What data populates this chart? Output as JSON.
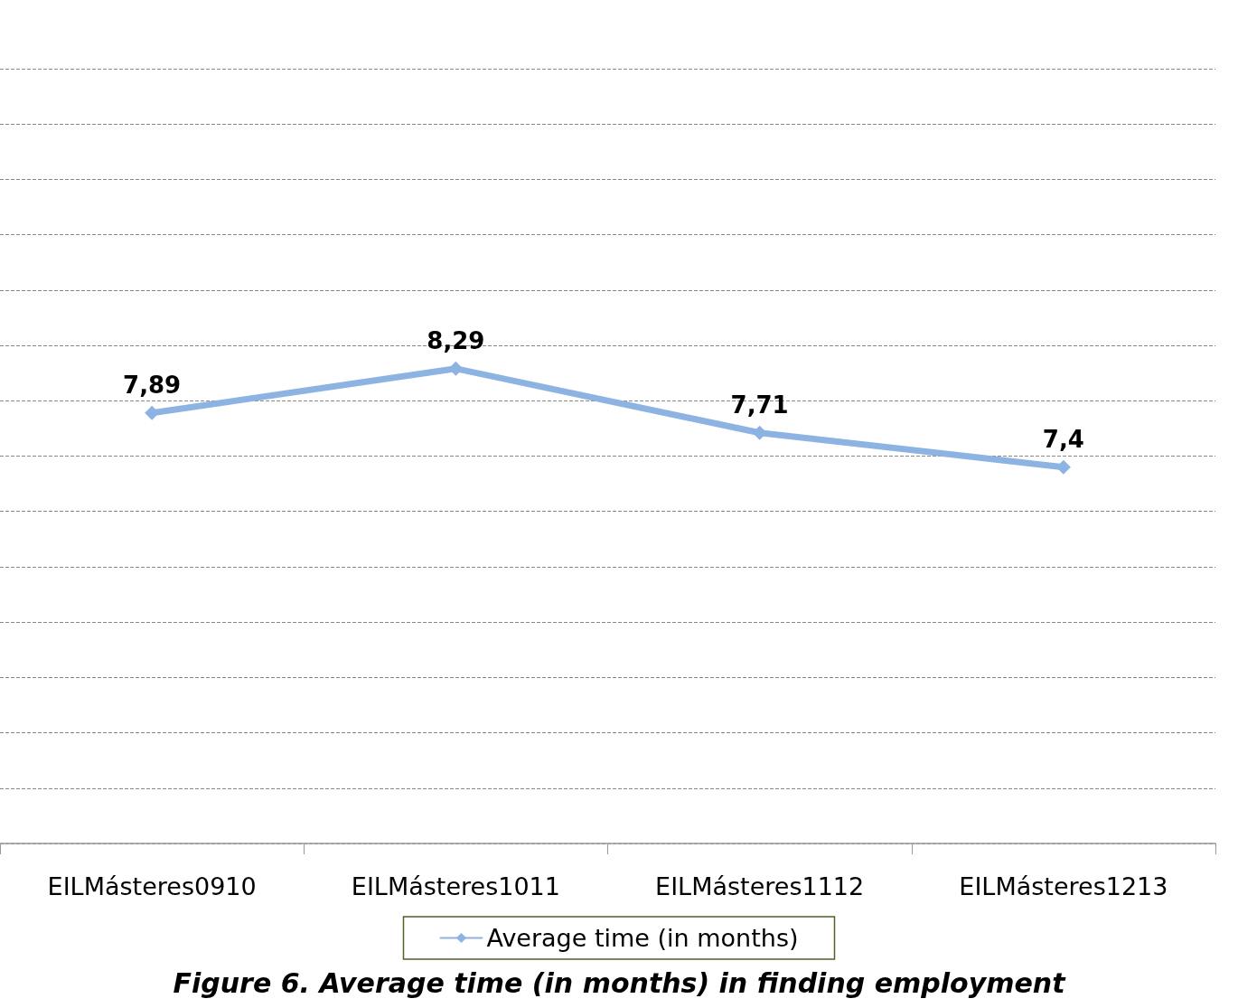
{
  "chart_data": {
    "type": "line",
    "categories": [
      "EILMásteres0910",
      "EILMásteres1011",
      "EILMásteres1112",
      "EILMásteres1213"
    ],
    "series": [
      {
        "name": "Average time (in months)",
        "color": "#8db3e2",
        "values": [
          7.89,
          8.29,
          7.71,
          7.4
        ],
        "value_labels": [
          "7,89",
          "8,29",
          "7,71",
          "7,4"
        ]
      }
    ],
    "ylim": [
      4,
      11
    ],
    "yticks": [
      {
        "value": 4.5,
        "label": null
      },
      {
        "value": 5,
        "label": null
      },
      {
        "value": 5.5,
        "label": null
      },
      {
        "value": 6,
        "label": null
      },
      {
        "value": 6.5,
        "label": null
      },
      {
        "value": 7,
        "label": null
      },
      {
        "value": 7.5,
        "label": null
      },
      {
        "value": 8,
        "label": null
      },
      {
        "value": 8.5,
        "label": null
      },
      {
        "value": 9,
        "label": null
      },
      {
        "value": 9.5,
        "label": null
      },
      {
        "value": 10,
        "label": null
      },
      {
        "value": 10.5,
        "label": null
      },
      {
        "value": 11,
        "label": null
      }
    ],
    "tick_labels": "x",
    "grid": "y",
    "legend": "bottom",
    "marker": "diamond",
    "line_style": "solid",
    "annotations": [
      "Figure 6. Average time (in months) in finding employment"
    ]
  }
}
